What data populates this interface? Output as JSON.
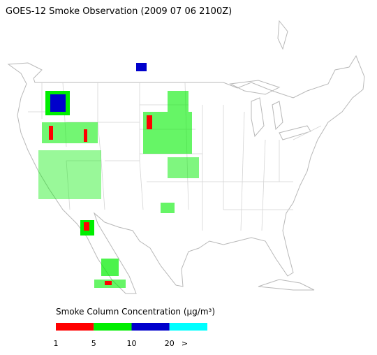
{
  "title": "GOES-12 Smoke Observation (2009 07 06  2100Z)",
  "legend": {
    "title": "Smoke Column Concentration (μg/m³)",
    "colors": [
      "#ff0000",
      "#00ee00",
      "#0000cc",
      "#00ffff"
    ],
    "labels": [
      "1",
      "5",
      "10",
      "20",
      ">"
    ]
  }
}
